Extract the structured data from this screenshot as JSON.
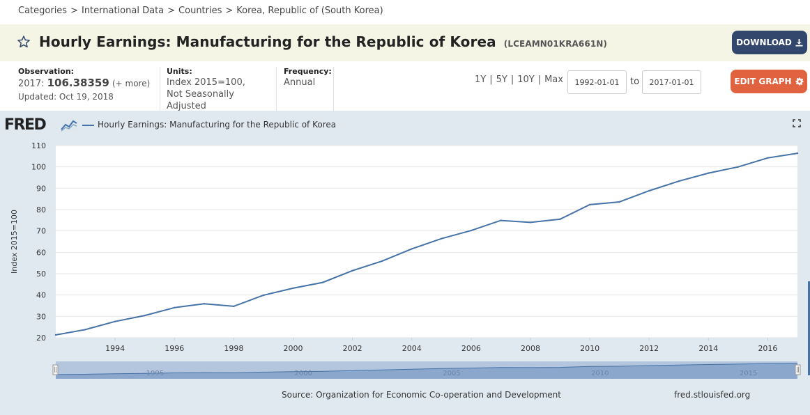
{
  "breadcrumb": [
    "Categories",
    "International Data",
    "Countries",
    "Korea, Republic of (South Korea)"
  ],
  "header": {
    "title": "Hourly Earnings: Manufacturing for the Republic of Korea",
    "series_id": "(LCEAMN01KRA661N)",
    "download_label": "DOWNLOAD"
  },
  "meta": {
    "observation_label": "Observation:",
    "observation_period": "2017:",
    "observation_value": "106.38359",
    "observation_more": "(+ more)",
    "updated": "Updated: Oct 19, 2018",
    "units_label": "Units:",
    "units_line1": "Index 2015=100,",
    "units_line2": "Not Seasonally Adjusted",
    "frequency_label": "Frequency:",
    "frequency_value": "Annual"
  },
  "range": {
    "options": [
      "1Y",
      "5Y",
      "10Y",
      "Max"
    ],
    "start_date": "1992-01-01",
    "to_label": "to",
    "end_date": "2017-01-01",
    "edit_label": "EDIT GRAPH"
  },
  "graph": {
    "logo_text": "FRED",
    "source": "Source: Organization for Economic Co-operation and Development",
    "site": "fred.stlouisfed.org",
    "navigator_labels": [
      "1995",
      "2000",
      "2005",
      "2010",
      "2015"
    ]
  },
  "colors": {
    "line": "#4572a7",
    "download_button": "#32476b",
    "edit_button": "#e0623f",
    "title_bar": "#f5f5e6",
    "graph_background": "#e1e9f0"
  },
  "chart_data": {
    "type": "line",
    "title": "Hourly Earnings: Manufacturing for the Republic of Korea",
    "xlabel": "",
    "ylabel": "Index 2015=100",
    "xlim": [
      1992,
      2017
    ],
    "ylim": [
      20,
      110
    ],
    "yticks": [
      20,
      30,
      40,
      50,
      60,
      70,
      80,
      90,
      100,
      110
    ],
    "xticks": [
      1994,
      1996,
      1998,
      2000,
      2002,
      2004,
      2006,
      2008,
      2010,
      2012,
      2014,
      2016
    ],
    "grid": true,
    "series": [
      {
        "name": "Hourly Earnings: Manufacturing for the Republic of Korea",
        "x": [
          1992,
          1993,
          1994,
          1995,
          1996,
          1997,
          1998,
          1999,
          2000,
          2001,
          2002,
          2003,
          2004,
          2005,
          2006,
          2007,
          2008,
          2009,
          2010,
          2011,
          2012,
          2013,
          2014,
          2015,
          2016,
          2017
        ],
        "values": [
          21.3,
          23.8,
          27.6,
          30.4,
          34.1,
          35.9,
          34.7,
          39.9,
          43.2,
          45.9,
          51.4,
          55.9,
          61.6,
          66.4,
          70.2,
          74.9,
          74.0,
          75.5,
          82.3,
          83.6,
          88.8,
          93.3,
          97.1,
          100.0,
          104.2,
          106.38
        ]
      }
    ]
  }
}
